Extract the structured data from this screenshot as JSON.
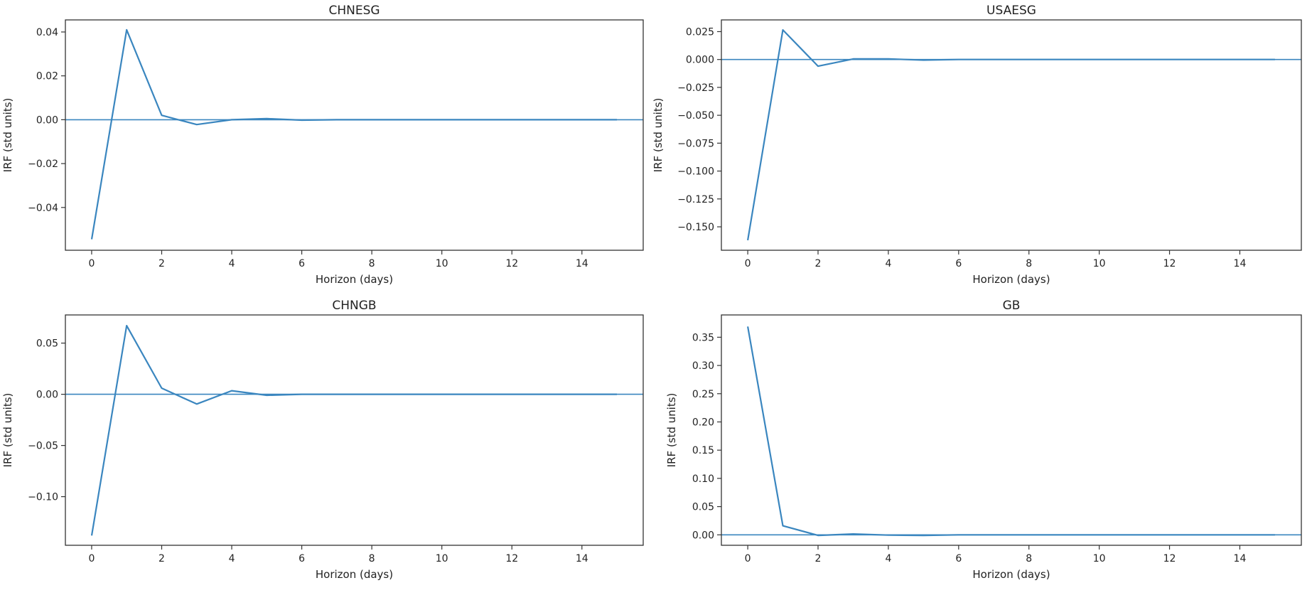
{
  "figure": {
    "background": "#ffffff",
    "line_color": "#3a86bf"
  },
  "chart_data": [
    {
      "type": "line",
      "title": "CHNESG",
      "xlabel": "Horizon (days)",
      "ylabel": "IRF (std units)",
      "xlim": [
        -0.75,
        15.75
      ],
      "ylim": [
        -0.0595,
        0.0455
      ],
      "xticks": [
        0,
        2,
        4,
        6,
        8,
        10,
        12,
        14
      ],
      "yticks": [
        -0.04,
        -0.02,
        0.0,
        0.02,
        0.04
      ],
      "ytick_labels": [
        "−0.04",
        "−0.02",
        "0.00",
        "0.02",
        "0.04"
      ],
      "zero_line": true,
      "grid": false,
      "series": [
        {
          "x": [
            0,
            1,
            2,
            3,
            4,
            5,
            6,
            7,
            8,
            9,
            10,
            11,
            12,
            13,
            14,
            15
          ],
          "y": [
            -0.0545,
            0.041,
            0.002,
            -0.0022,
            0.0,
            0.0005,
            -0.0002,
            0.0,
            0.0,
            0.0,
            0.0,
            0.0,
            0.0,
            0.0,
            0.0,
            0.0
          ]
        }
      ]
    },
    {
      "type": "line",
      "title": "USAESG",
      "xlabel": "Horizon (days)",
      "ylabel": "IRF (std units)",
      "xlim": [
        -0.75,
        15.75
      ],
      "ylim": [
        -0.171,
        0.0355
      ],
      "xticks": [
        0,
        2,
        4,
        6,
        8,
        10,
        12,
        14
      ],
      "yticks": [
        -0.15,
        -0.125,
        -0.1,
        -0.075,
        -0.05,
        -0.025,
        0.0,
        0.025
      ],
      "ytick_labels": [
        "−0.150",
        "−0.125",
        "−0.100",
        "−0.075",
        "−0.050",
        "−0.025",
        "0.000",
        "0.025"
      ],
      "zero_line": true,
      "grid": false,
      "series": [
        {
          "x": [
            0,
            1,
            2,
            3,
            4,
            5,
            6,
            7,
            8,
            9,
            10,
            11,
            12,
            13,
            14,
            15
          ],
          "y": [
            -0.162,
            0.0265,
            -0.006,
            0.0005,
            0.0005,
            -0.0005,
            0.0,
            0.0,
            0.0,
            0.0,
            0.0,
            0.0,
            0.0,
            0.0,
            0.0,
            0.0
          ]
        }
      ]
    },
    {
      "type": "line",
      "title": "CHNGB",
      "xlabel": "Horizon (days)",
      "ylabel": "IRF (std units)",
      "xlim": [
        -0.75,
        15.75
      ],
      "ylim": [
        -0.1475,
        0.0775
      ],
      "xticks": [
        0,
        2,
        4,
        6,
        8,
        10,
        12,
        14
      ],
      "yticks": [
        -0.1,
        -0.05,
        0.0,
        0.05
      ],
      "ytick_labels": [
        "−0.10",
        "−0.05",
        "0.00",
        "0.05"
      ],
      "zero_line": true,
      "grid": false,
      "series": [
        {
          "x": [
            0,
            1,
            2,
            3,
            4,
            5,
            6,
            7,
            8,
            9,
            10,
            11,
            12,
            13,
            14,
            15
          ],
          "y": [
            -0.138,
            0.067,
            0.006,
            -0.0095,
            0.0035,
            -0.001,
            0.0,
            0.0,
            0.0,
            0.0,
            0.0,
            0.0,
            0.0,
            0.0,
            0.0,
            0.0
          ]
        }
      ]
    },
    {
      "type": "line",
      "title": "GB",
      "xlabel": "Horizon (days)",
      "ylabel": "IRF (std units)",
      "xlim": [
        -0.75,
        15.75
      ],
      "ylim": [
        -0.0185,
        0.3895
      ],
      "xticks": [
        0,
        2,
        4,
        6,
        8,
        10,
        12,
        14
      ],
      "yticks": [
        0.0,
        0.05,
        0.1,
        0.15,
        0.2,
        0.25,
        0.3,
        0.35
      ],
      "ytick_labels": [
        "0.00",
        "0.05",
        "0.10",
        "0.15",
        "0.20",
        "0.25",
        "0.30",
        "0.35"
      ],
      "zero_line": true,
      "grid": false,
      "series": [
        {
          "x": [
            0,
            1,
            2,
            3,
            4,
            5,
            6,
            7,
            8,
            9,
            10,
            11,
            12,
            13,
            14,
            15
          ],
          "y": [
            0.369,
            0.016,
            -0.001,
            0.0015,
            -0.0005,
            -0.001,
            0.0,
            0.0,
            0.0,
            0.0,
            0.0,
            0.0,
            0.0,
            0.0,
            0.0,
            0.0
          ]
        }
      ]
    }
  ]
}
